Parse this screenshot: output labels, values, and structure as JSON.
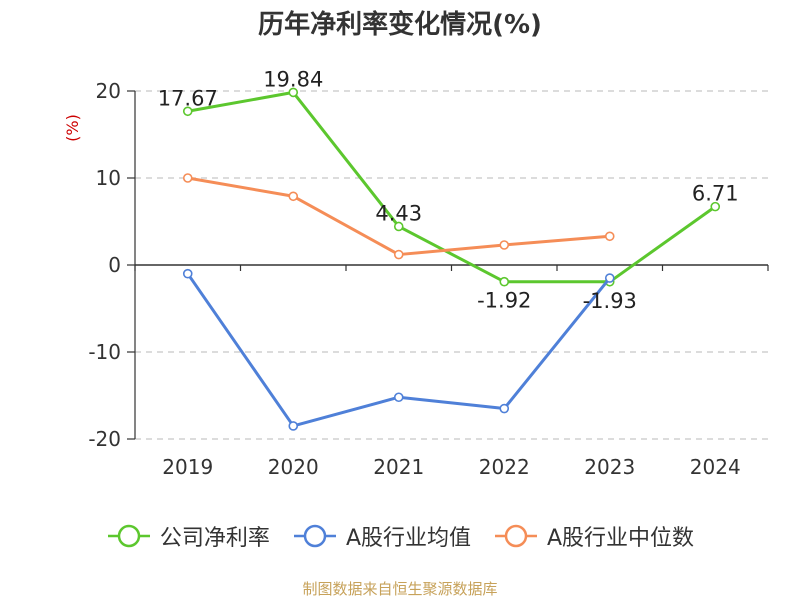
{
  "chart_data": {
    "type": "line",
    "title": "历年净利率变化情况(%)",
    "ylabel": "(%)",
    "xlabel": "",
    "categories": [
      "2019",
      "2020",
      "2021",
      "2022",
      "2023",
      "2024"
    ],
    "ylim": [
      -20,
      20
    ],
    "yticks": [
      20,
      10,
      0,
      -10,
      -20
    ],
    "grid": true,
    "legend_position": "bottom",
    "series": [
      {
        "name": "公司净利率",
        "color": "#5cc72e",
        "values": [
          17.67,
          19.84,
          4.43,
          -1.92,
          -1.93,
          6.71
        ],
        "labels": [
          "17.67",
          "19.84",
          "4.43",
          "-1.92",
          "-1.93",
          "6.71"
        ]
      },
      {
        "name": "A股行业均值",
        "color": "#4f80d8",
        "values": [
          -1.0,
          -18.5,
          -15.2,
          -16.5,
          -1.5,
          null
        ],
        "labels": []
      },
      {
        "name": "A股行业中位数",
        "color": "#f58d57",
        "values": [
          10.0,
          7.9,
          1.2,
          2.3,
          3.3,
          null
        ],
        "labels": []
      }
    ]
  },
  "source": "制图数据来自恒生聚源数据库"
}
